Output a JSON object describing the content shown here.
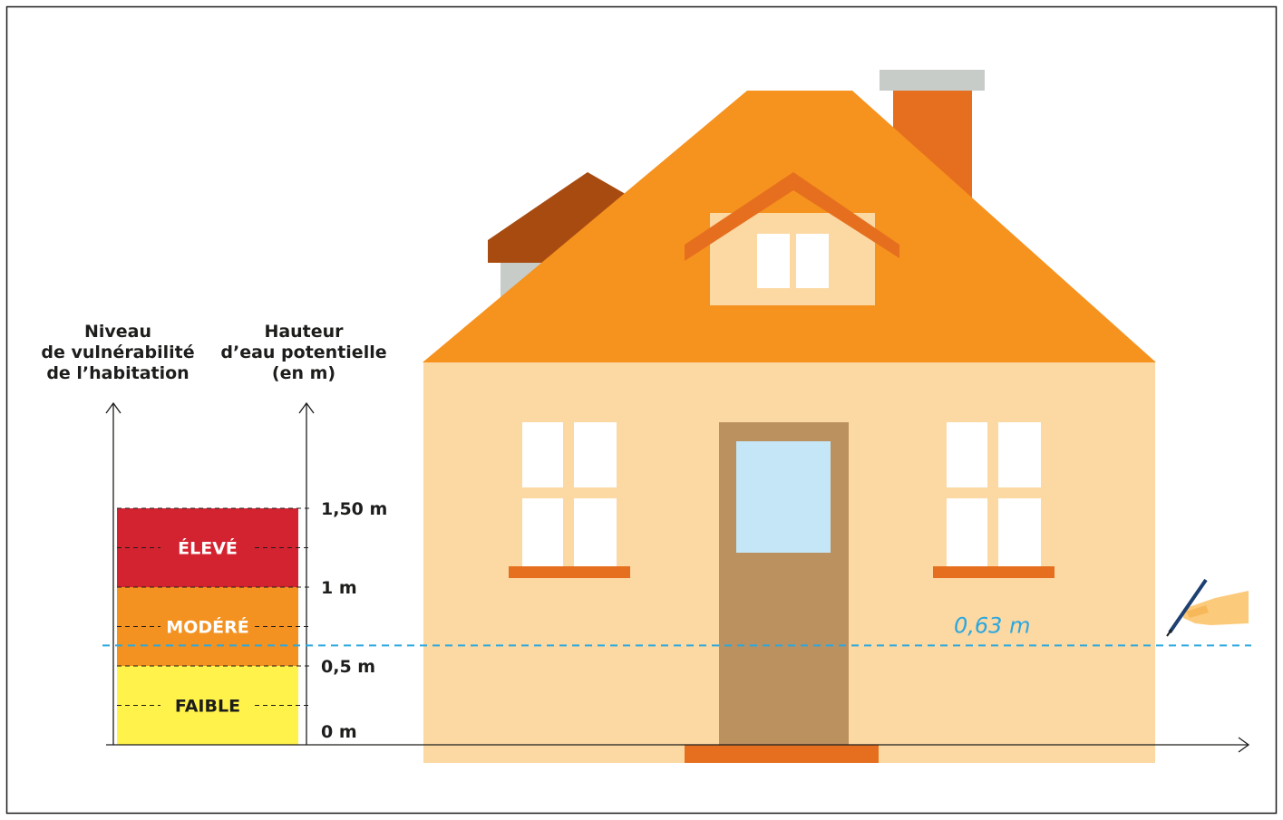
{
  "headers": {
    "vulnerability": [
      "Niveau",
      "de vulnérabilité",
      "de l’habitation"
    ],
    "water_height": [
      "Hauteur",
      "d’eau potentielle",
      "(en m)"
    ]
  },
  "levels": [
    {
      "label": "FAIBLE",
      "from_m": 0,
      "to_m": 0.5,
      "color": "#fff24a",
      "text_color": "#1d1d1b"
    },
    {
      "label": "MODÉRÉ",
      "from_m": 0.5,
      "to_m": 1,
      "color": "#f39221",
      "text_color": "#ffffff"
    },
    {
      "label": "ÉLEVÉ",
      "from_m": 1,
      "to_m": 1.5,
      "color": "#d42330",
      "text_color": "#ffffff"
    }
  ],
  "ticks": [
    {
      "value_m": 0,
      "label": "0 m"
    },
    {
      "value_m": 0.5,
      "label": "0,5 m"
    },
    {
      "value_m": 1,
      "label": "1 m"
    },
    {
      "value_m": 1.5,
      "label": "1,50 m"
    }
  ],
  "water_mark": {
    "value_m": 0.63,
    "label": "0,63 m",
    "color": "#2aa7df"
  },
  "colors": {
    "roof": "#f6921e",
    "roof_dark": "#e56f1e",
    "roof_back": "#a84b10",
    "wall": "#fcd8a3",
    "window": "#ffffff",
    "door": "#bb9160",
    "door_glass": "#c4e6f6",
    "chimney_cap": "#c8ccc9",
    "ink": "#1d1d1b"
  },
  "icons": [
    "hand-with-pen-icon"
  ]
}
